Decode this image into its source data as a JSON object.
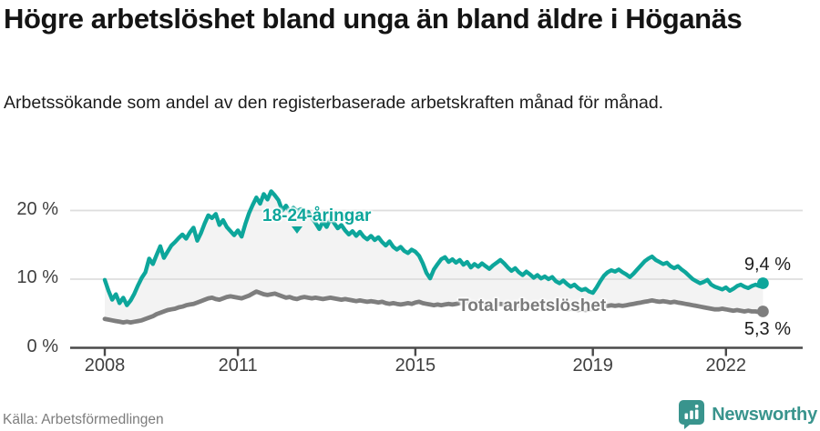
{
  "header": {
    "title": "Högre arbetslöshet bland unga än bland äldre i Höganäs",
    "subtitle": "Arbetssökande som andel av den registerbaserade arbetskraften månad för månad."
  },
  "chart_data": {
    "type": "line",
    "unit": "%",
    "frequency": "monthly",
    "x_start": "2008-01",
    "x_end": "2022-11",
    "ylim": [
      0,
      24
    ],
    "grid": true,
    "legend_position": "inline-labels",
    "area_between_series_color": "#f3f3f3",
    "y_ticks": [
      {
        "value": 0,
        "label": "0 %"
      },
      {
        "value": 10,
        "label": "10 %"
      },
      {
        "value": 20,
        "label": "20 %"
      }
    ],
    "x_ticks": [
      {
        "year": 2008,
        "label": "2008"
      },
      {
        "year": 2011,
        "label": "2011"
      },
      {
        "year": 2015,
        "label": "2015"
      },
      {
        "year": 2019,
        "label": "2019"
      },
      {
        "year": 2022,
        "label": "2022"
      }
    ],
    "series": [
      {
        "name": "18-24-åringar",
        "color": "#0da69b",
        "end_value": 9.4,
        "end_label": "9,4 %",
        "values": [
          9.9,
          8.3,
          7.0,
          7.8,
          6.5,
          7.3,
          6.2,
          6.9,
          7.9,
          9.1,
          10.2,
          11.0,
          13.0,
          12.2,
          13.5,
          14.8,
          13.1,
          14.0,
          14.9,
          15.4,
          16.0,
          16.5,
          15.9,
          16.8,
          17.5,
          15.6,
          16.7,
          18.1,
          19.3,
          18.9,
          19.5,
          17.9,
          18.6,
          17.6,
          17.0,
          16.4,
          17.1,
          16.2,
          18.0,
          19.6,
          20.8,
          21.9,
          21.0,
          22.4,
          21.6,
          22.8,
          22.2,
          21.5,
          20.0,
          20.7,
          19.8,
          20.4,
          19.9,
          20.2,
          19.4,
          19.8,
          18.9,
          18.2,
          17.3,
          18.4,
          17.6,
          18.8,
          18.2,
          17.4,
          17.9,
          17.1,
          16.5,
          17.0,
          16.3,
          16.9,
          16.2,
          15.8,
          16.3,
          15.7,
          16.1,
          15.4,
          14.9,
          15.5,
          14.7,
          14.3,
          14.7,
          14.1,
          13.8,
          14.3,
          14.0,
          13.4,
          12.3,
          10.9,
          10.1,
          11.4,
          12.2,
          12.9,
          13.2,
          12.5,
          12.9,
          12.4,
          12.8,
          12.1,
          12.5,
          11.7,
          12.2,
          11.8,
          12.3,
          11.9,
          11.5,
          12.0,
          12.4,
          12.8,
          12.3,
          11.7,
          11.2,
          11.6,
          11.0,
          10.6,
          11.1,
          10.7,
          10.2,
          10.6,
          10.1,
          10.4,
          10.0,
          10.3,
          9.7,
          9.4,
          9.8,
          9.3,
          8.9,
          9.2,
          8.7,
          8.4,
          8.6,
          8.2,
          8.0,
          8.8,
          9.7,
          10.5,
          11.0,
          11.3,
          11.1,
          11.4,
          11.0,
          10.7,
          10.3,
          10.8,
          11.4,
          12.0,
          12.6,
          13.0,
          13.3,
          12.8,
          12.5,
          12.2,
          12.4,
          11.9,
          11.6,
          11.9,
          11.4,
          11.0,
          10.5,
          10.0,
          9.7,
          9.4,
          9.6,
          9.9,
          9.2,
          8.9,
          8.7,
          8.5,
          8.8,
          8.3,
          8.6,
          9.0,
          9.2,
          8.9,
          8.7,
          9.0,
          9.2,
          9.0,
          9.4
        ]
      },
      {
        "name": "Total arbetslöshet",
        "color": "#7e7e7e",
        "end_value": 5.3,
        "end_label": "5,3 %",
        "values": [
          4.2,
          4.1,
          4.0,
          3.9,
          3.8,
          3.7,
          3.8,
          3.7,
          3.8,
          3.9,
          4.0,
          4.2,
          4.4,
          4.6,
          4.9,
          5.1,
          5.3,
          5.5,
          5.6,
          5.7,
          5.9,
          6.0,
          6.2,
          6.3,
          6.4,
          6.6,
          6.8,
          7.0,
          7.2,
          7.3,
          7.1,
          7.0,
          7.2,
          7.4,
          7.5,
          7.4,
          7.3,
          7.2,
          7.4,
          7.6,
          7.9,
          8.2,
          8.0,
          7.8,
          7.7,
          7.8,
          7.9,
          7.7,
          7.5,
          7.3,
          7.4,
          7.2,
          7.1,
          7.3,
          7.4,
          7.3,
          7.2,
          7.3,
          7.2,
          7.1,
          7.2,
          7.3,
          7.2,
          7.1,
          7.0,
          7.1,
          7.0,
          6.9,
          6.8,
          6.9,
          6.8,
          6.7,
          6.8,
          6.7,
          6.6,
          6.7,
          6.5,
          6.4,
          6.5,
          6.4,
          6.3,
          6.4,
          6.5,
          6.4,
          6.6,
          6.7,
          6.5,
          6.4,
          6.3,
          6.2,
          6.3,
          6.2,
          6.3,
          6.4,
          6.3,
          6.4,
          6.5,
          6.6,
          6.5,
          6.6,
          6.5,
          6.6,
          6.5,
          6.4,
          6.5,
          6.4,
          6.3,
          6.4,
          6.3,
          6.2,
          6.3,
          6.2,
          6.1,
          6.2,
          6.1,
          6.0,
          5.9,
          6.0,
          5.9,
          5.8,
          5.9,
          5.8,
          5.7,
          5.8,
          5.7,
          5.6,
          5.7,
          5.6,
          5.5,
          5.6,
          5.5,
          5.6,
          5.7,
          5.8,
          5.9,
          6.0,
          6.1,
          6.2,
          6.1,
          6.2,
          6.1,
          6.2,
          6.3,
          6.4,
          6.5,
          6.6,
          6.7,
          6.8,
          6.9,
          6.8,
          6.7,
          6.8,
          6.7,
          6.6,
          6.7,
          6.6,
          6.5,
          6.4,
          6.3,
          6.2,
          6.1,
          6.0,
          5.9,
          5.8,
          5.7,
          5.6,
          5.6,
          5.7,
          5.6,
          5.5,
          5.4,
          5.5,
          5.4,
          5.3,
          5.4,
          5.3,
          5.3,
          5.2,
          5.3
        ]
      }
    ]
  },
  "footer": {
    "source": "Källa: Arbetsförmedlingen",
    "brand": "Newsworthy"
  },
  "colors": {
    "accent_teal": "#0da69b",
    "line_gray": "#7e7e7e",
    "grid": "#dedede",
    "axis": "#4a4a4a",
    "logo_teal": "#39948d"
  }
}
